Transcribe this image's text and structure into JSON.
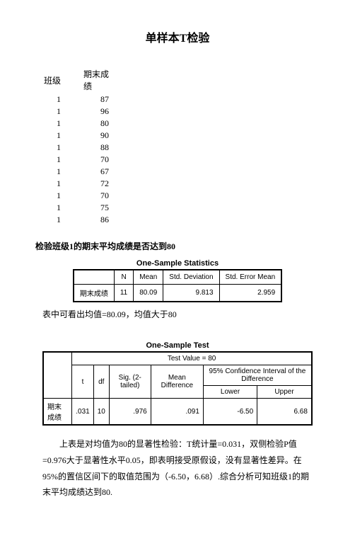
{
  "title": "单样本T检验",
  "data_table": {
    "col1_header": "班级",
    "col2_header": "期末成\n绩",
    "rows": [
      [
        "1",
        "87"
      ],
      [
        "1",
        "96"
      ],
      [
        "1",
        "80"
      ],
      [
        "1",
        "90"
      ],
      [
        "1",
        "88"
      ],
      [
        "1",
        "70"
      ],
      [
        "1",
        "67"
      ],
      [
        "1",
        "72"
      ],
      [
        "1",
        "70"
      ],
      [
        "1",
        "75"
      ],
      [
        "1",
        "86"
      ]
    ]
  },
  "section1_heading": "检验班级1的期末平均成绩是否达到80",
  "stats": {
    "caption": "One-Sample Statistics",
    "headers": [
      "",
      "N",
      "Mean",
      "Std. Deviation",
      "Std. Error Mean"
    ],
    "row_label": "期末成绩",
    "values": [
      "11",
      "80.09",
      "9.813",
      "2.959"
    ]
  },
  "note1": "表中可看出均值=80.09，均值大于80",
  "test": {
    "caption": "One-Sample Test",
    "test_value_label": "Test Value = 80",
    "ci_label": "95% Confidence Interval of the Difference",
    "headers": [
      "",
      "t",
      "df",
      "Sig. (2-tailed)",
      "Mean Difference",
      "Lower",
      "Upper"
    ],
    "row_label": "期末成绩",
    "values": [
      ".031",
      "10",
      ".976",
      ".091",
      "-6.50",
      "6.68"
    ]
  },
  "para1": "上表是对均值为80的显著性检验：T统计量=0.031，双侧检验P值=0.976大于显著性水平0.05，即表明接受原假设，没有显著性差异。在95%的置信区间下的取值范围为（-6.50，6.68）.综合分析可知班级1的期末平均成绩达到80."
}
